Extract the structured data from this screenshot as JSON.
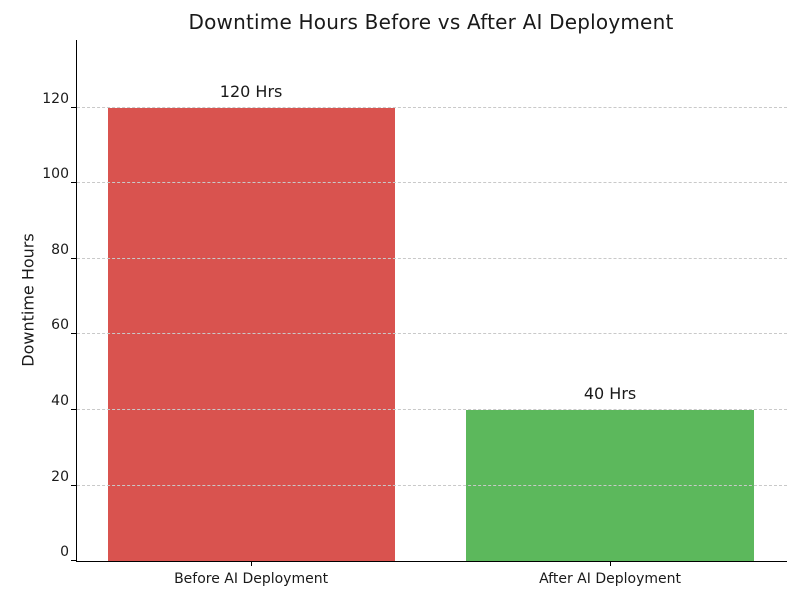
{
  "figure": {
    "background": "#ffffff"
  },
  "chart_data": {
    "type": "bar",
    "title": "Downtime Hours Before vs After AI Deployment",
    "categories": [
      "Before AI Deployment",
      "After AI Deployment"
    ],
    "values": [
      120,
      40
    ],
    "bar_labels": [
      "120 Hrs",
      "40 Hrs"
    ],
    "bar_colors": [
      "#d9534f",
      "#5cb85c"
    ],
    "xlabel": "",
    "ylabel": "Downtime Hours",
    "ylim": [
      0,
      138
    ],
    "yticks": [
      0,
      20,
      40,
      60,
      80,
      100,
      120
    ],
    "grid": {
      "axis": "y",
      "style": "dashed",
      "color": "#c9c9c9",
      "drawn_over_bars": true
    },
    "legend": "none",
    "spines": [
      "left",
      "bottom"
    ],
    "text_color": "#1a1a1a"
  }
}
